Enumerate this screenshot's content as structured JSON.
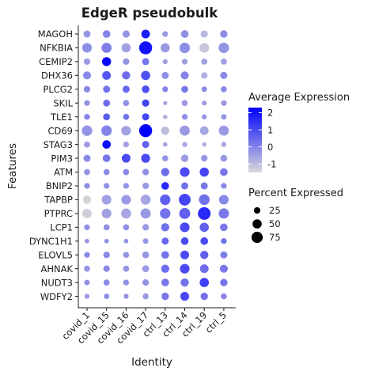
{
  "chart_data": {
    "type": "dotplot",
    "title": "EdgeR pseudobulk",
    "xlabel": "Identity",
    "ylabel": "Features",
    "categories": [
      "covid_1",
      "covid_15",
      "covid_16",
      "covid_17",
      "ctrl_13",
      "ctrl_14",
      "ctrl_19",
      "ctrl_5"
    ],
    "features": [
      "MAGOH",
      "NFKBIA",
      "CEMIP2",
      "DHX36",
      "PLCG2",
      "SKIL",
      "TLE1",
      "CD69",
      "STAG3",
      "PIM3",
      "ATM",
      "BNIP2",
      "TAPBP",
      "PTPRC",
      "LCP1",
      "DYNC1H1",
      "ELOVL5",
      "AHNAK",
      "NUDT3",
      "WDFY2"
    ],
    "avg_expression": [
      [
        -0.3,
        0.0,
        -0.3,
        1.8,
        -0.4,
        -0.2,
        -0.9,
        -0.2
      ],
      [
        -0.2,
        0.1,
        -0.5,
        2.0,
        -0.4,
        -0.2,
        -1.2,
        -0.3
      ],
      [
        -0.4,
        2.2,
        -0.3,
        0.2,
        -0.5,
        -0.5,
        -0.5,
        -0.5
      ],
      [
        -0.1,
        0.8,
        0.4,
        0.9,
        -0.2,
        0.0,
        -0.8,
        -0.1
      ],
      [
        -0.1,
        0.3,
        0.5,
        0.9,
        0.0,
        0.2,
        -0.1,
        -0.1
      ],
      [
        -0.3,
        0.4,
        -0.2,
        1.1,
        -0.5,
        -0.4,
        -0.5,
        -0.4
      ],
      [
        0.0,
        0.7,
        0.3,
        1.1,
        -0.8,
        -0.2,
        -0.3,
        -0.3
      ],
      [
        -0.3,
        0.0,
        -0.5,
        2.3,
        -1.0,
        -0.4,
        -0.6,
        -0.4
      ],
      [
        -0.4,
        2.1,
        -0.5,
        0.6,
        -0.6,
        -0.6,
        -0.8,
        -0.6
      ],
      [
        -0.1,
        0.2,
        1.0,
        1.0,
        -0.3,
        -0.4,
        -0.3,
        -0.4
      ],
      [
        -0.3,
        -0.1,
        -0.1,
        -0.2,
        0.4,
        1.0,
        1.1,
        0.2
      ],
      [
        -0.2,
        -0.2,
        -0.3,
        -0.4,
        1.6,
        0.3,
        0.2,
        -0.1
      ],
      [
        -1.4,
        -0.5,
        -0.4,
        -0.6,
        0.6,
        1.1,
        0.3,
        -0.1
      ],
      [
        -1.3,
        -0.5,
        -0.6,
        -0.4,
        0.3,
        0.6,
        1.6,
        0.2
      ],
      [
        -0.2,
        -0.2,
        -0.2,
        -0.4,
        0.3,
        1.0,
        0.6,
        0.2
      ],
      [
        -0.3,
        -0.2,
        -0.3,
        -0.3,
        0.5,
        1.0,
        1.0,
        0.3
      ],
      [
        -0.1,
        -0.1,
        -0.3,
        -0.3,
        0.3,
        1.0,
        0.6,
        0.1
      ],
      [
        -0.3,
        -0.1,
        -0.3,
        -0.4,
        0.4,
        1.0,
        0.4,
        0.2
      ],
      [
        -0.2,
        -0.1,
        -0.2,
        -0.3,
        0.2,
        0.3,
        1.2,
        0.3
      ],
      [
        -0.4,
        -0.2,
        -0.3,
        -0.4,
        0.2,
        1.1,
        0.3,
        -0.1
      ]
    ],
    "pct_expressed": [
      [
        30,
        35,
        32,
        45,
        20,
        35,
        30,
        33
      ],
      [
        55,
        60,
        50,
        100,
        50,
        65,
        55,
        65
      ],
      [
        25,
        48,
        25,
        30,
        15,
        20,
        22,
        22
      ],
      [
        38,
        45,
        40,
        50,
        30,
        38,
        25,
        30
      ],
      [
        25,
        30,
        30,
        35,
        20,
        28,
        18,
        22
      ],
      [
        20,
        28,
        22,
        32,
        10,
        22,
        15,
        20
      ],
      [
        20,
        28,
        22,
        30,
        12,
        20,
        15,
        18
      ],
      [
        65,
        65,
        55,
        100,
        40,
        60,
        45,
        60
      ],
      [
        22,
        42,
        20,
        30,
        12,
        15,
        12,
        15
      ],
      [
        30,
        35,
        45,
        48,
        22,
        32,
        25,
        28
      ],
      [
        22,
        22,
        22,
        25,
        40,
        55,
        50,
        35
      ],
      [
        20,
        20,
        20,
        25,
        35,
        30,
        30,
        20
      ],
      [
        40,
        55,
        55,
        60,
        65,
        82,
        68,
        55
      ],
      [
        52,
        55,
        60,
        62,
        65,
        72,
        95,
        62
      ],
      [
        20,
        22,
        22,
        25,
        40,
        55,
        50,
        35
      ],
      [
        12,
        12,
        12,
        18,
        30,
        35,
        35,
        20
      ],
      [
        20,
        25,
        22,
        28,
        35,
        45,
        40,
        30
      ],
      [
        22,
        25,
        22,
        28,
        40,
        55,
        45,
        38
      ],
      [
        18,
        22,
        20,
        25,
        35,
        40,
        50,
        32
      ],
      [
        15,
        18,
        15,
        22,
        32,
        45,
        32,
        22
      ]
    ],
    "color_legend": {
      "title": "Average Expression",
      "ticks": [
        "2",
        "1",
        "0",
        "-1"
      ],
      "tick_values": [
        2,
        1,
        0,
        -1
      ],
      "range": [
        -1.5,
        2.3
      ],
      "low_color": "#d9d9d9",
      "high_color": "#0000ff"
    },
    "size_legend": {
      "title": "Percent Expressed",
      "labels": [
        "25",
        "50",
        "75"
      ],
      "values": [
        25,
        50,
        75
      ]
    },
    "legend_position": "right",
    "grid": false
  }
}
